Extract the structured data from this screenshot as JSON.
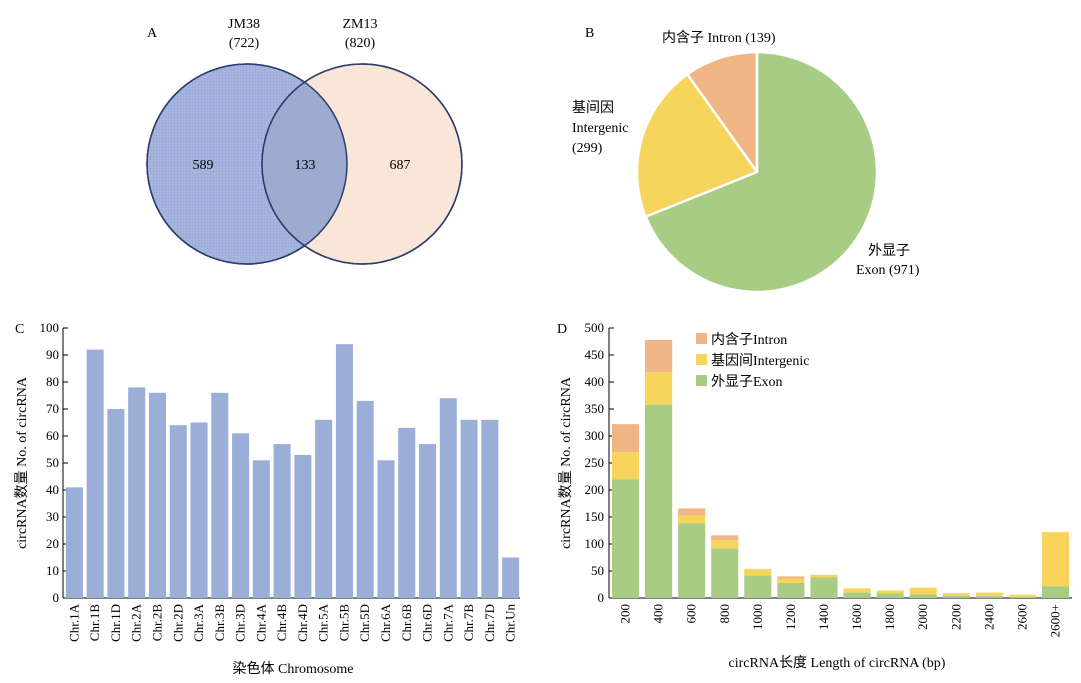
{
  "colors": {
    "jm38": "#9fb0d9",
    "zm13": "#f9e6d9",
    "circle_stroke": "#2c3e6b",
    "exon": "#a9cc85",
    "intergenic": "#f7d45c",
    "intron": "#efb584",
    "bar_blue": "#9aaed8",
    "axis": "#000000"
  },
  "chart_data": [
    {
      "type": "venn",
      "panel": "A",
      "sets": [
        {
          "name": "JM38",
          "count_label": "(722)"
        },
        {
          "name": "ZM13",
          "count_label": "(820)"
        }
      ],
      "regions": {
        "only_a": "589",
        "both": "133",
        "only_b": "687"
      }
    },
    {
      "type": "pie",
      "panel": "B",
      "slices": [
        {
          "name": "内含子 Intron",
          "value": 139,
          "label": "内含子 Intron (139)",
          "color": "#efb584"
        },
        {
          "name": "基间因 Intergenic",
          "value": 299,
          "label_lines": [
            "基间因",
            "Intergenic",
            "(299)"
          ],
          "color": "#f7d45c"
        },
        {
          "name": "外显子 Exon",
          "value": 971,
          "label_lines": [
            "外显子",
            "Exon (971)"
          ],
          "color": "#a9cc85"
        }
      ]
    },
    {
      "type": "bar",
      "panel": "C",
      "categories": [
        "Chr.1A",
        "Chr.1B",
        "Chr.1D",
        "Chr.2A",
        "Chr.2B",
        "Chr.2D",
        "Chr.3A",
        "Chr.3B",
        "Chr.3D",
        "Chr.4A",
        "Chr.4B",
        "Chr.4D",
        "Chr.5A",
        "Chr.5B",
        "Chr.5D",
        "Chr.6A",
        "Chr.6B",
        "Chr.6D",
        "Chr.7A",
        "Chr.7B",
        "Chr.7D",
        "Chr.Un"
      ],
      "values": [
        41,
        92,
        70,
        78,
        76,
        64,
        65,
        76,
        61,
        51,
        57,
        53,
        66,
        94,
        73,
        51,
        63,
        57,
        74,
        66,
        66,
        15
      ],
      "ylim": [
        0,
        100
      ],
      "yticks": [
        0,
        10,
        20,
        30,
        40,
        50,
        60,
        70,
        80,
        90,
        100
      ],
      "xlabel": "染色体 Chromosome",
      "ylabel": "circRNA数量 No. of circRNA"
    },
    {
      "type": "stacked_bar",
      "panel": "D",
      "categories": [
        "200",
        "400",
        "600",
        "800",
        "1000",
        "1200",
        "1400",
        "1600",
        "1800",
        "2000",
        "2200",
        "2400",
        "2600",
        "2600+"
      ],
      "series": [
        {
          "name": "外显子Exon",
          "values": [
            220,
            358,
            138,
            92,
            42,
            28,
            38,
            10,
            9,
            7,
            4,
            4,
            2,
            22
          ]
        },
        {
          "name": "基因间Intergenic",
          "values": [
            50,
            60,
            15,
            15,
            12,
            8,
            5,
            8,
            5,
            12,
            5,
            6,
            4,
            100
          ]
        },
        {
          "name": "内含子Intron",
          "values": [
            52,
            60,
            13,
            9,
            0,
            4,
            0,
            0,
            0,
            0,
            0,
            0,
            0,
            0
          ]
        }
      ],
      "ylim": [
        0,
        500
      ],
      "yticks": [
        0,
        50,
        100,
        150,
        200,
        250,
        300,
        350,
        400,
        450,
        500
      ],
      "xlabel": "circRNA长度 Length of circRNA (bp)",
      "ylabel": "circRNA数量 No. of circRNA",
      "legend": {
        "placement": "top-center",
        "order": [
          "内含子Intron",
          "基因间Intergenic",
          "外显子Exon"
        ]
      }
    }
  ]
}
